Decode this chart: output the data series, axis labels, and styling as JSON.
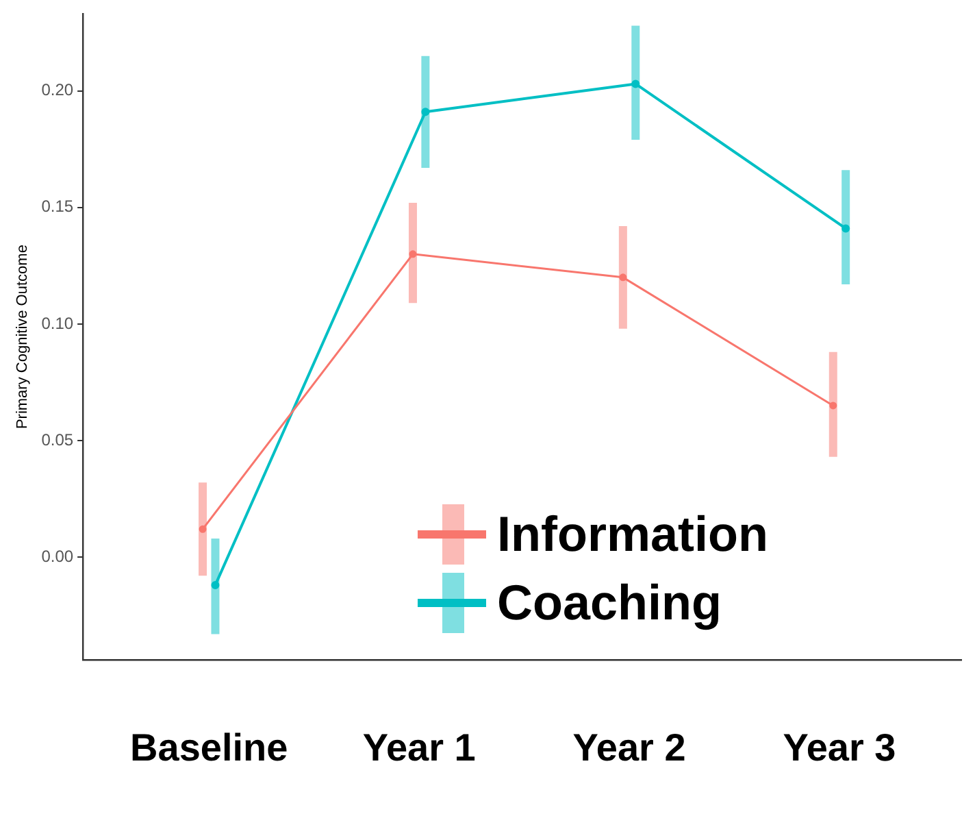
{
  "chart_data": {
    "type": "line",
    "ylabel": "Primary Cognitive Outcome",
    "categories": [
      "Baseline",
      "Year 1",
      "Year 2",
      "Year 3"
    ],
    "series": [
      {
        "name": "Information",
        "color": "#f8766d",
        "values": [
          0.012,
          0.13,
          0.12,
          0.065
        ],
        "errors": [
          [
            -0.008,
            0.032
          ],
          [
            0.109,
            0.152
          ],
          [
            0.098,
            0.142
          ],
          [
            0.043,
            0.088
          ]
        ]
      },
      {
        "name": "Coaching",
        "color": "#00bfc4",
        "values": [
          -0.012,
          0.191,
          0.203,
          0.141
        ],
        "errors": [
          [
            -0.033,
            0.008
          ],
          [
            0.167,
            0.215
          ],
          [
            0.179,
            0.228
          ],
          [
            0.117,
            0.166
          ]
        ]
      }
    ],
    "ylim": [
      -0.044,
      0.233
    ],
    "yticks": [
      {
        "value": 0,
        "label": "0.00"
      },
      {
        "value": 0.05,
        "label": "0.05"
      },
      {
        "value": 0.1,
        "label": "0.10"
      },
      {
        "value": 0.15,
        "label": "0.15"
      },
      {
        "value": 0.2,
        "label": "0.20"
      }
    ],
    "grid": false,
    "legend": "bottom",
    "marker": "circle",
    "line_style": "solid"
  }
}
